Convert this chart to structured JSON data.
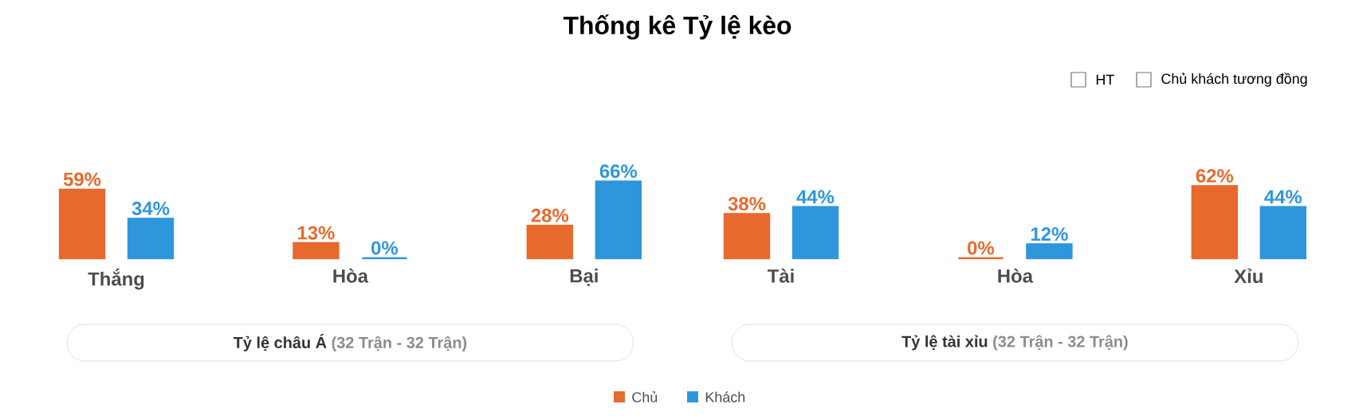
{
  "chart_data": [
    {
      "type": "bar",
      "title": "Thống kê Tỷ lệ kèo",
      "xlabel": "Tỷ lệ châu Á",
      "annotations": [
        "(32 Trận - 32 Trận)",
        "HT",
        "Chủ khách tương đồng"
      ],
      "categories": [
        "Thắng",
        "Hòa",
        "Bại"
      ],
      "legend": "bottom",
      "series": [
        {
          "name": "Chủ",
          "color": "#e8692d",
          "values": [
            59,
            13,
            28
          ],
          "value_labels": [
            "59%",
            "13%",
            "28%"
          ]
        },
        {
          "name": "Khách",
          "color": "#2e97db",
          "values": [
            34,
            0,
            66
          ],
          "value_labels": [
            "34%",
            "0%",
            "66%"
          ]
        }
      ]
    },
    {
      "type": "bar",
      "xlabel": "Tỷ lệ tài xỉu",
      "annotations": [
        "(32 Trận - 32 Trận)"
      ],
      "categories": [
        "Tài",
        "Hòa",
        "Xỉu"
      ],
      "series": [
        {
          "color": "#e8692d",
          "values": [
            38,
            0,
            62
          ],
          "value_labels": [
            "38%",
            "0%",
            "62%"
          ]
        },
        {
          "color": "#2e97db",
          "values": [
            44,
            12,
            44
          ],
          "value_labels": [
            "44%",
            "12%",
            "44%"
          ]
        }
      ]
    }
  ]
}
